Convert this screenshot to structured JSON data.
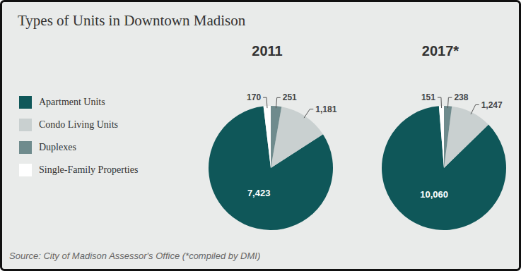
{
  "title": "Types of Units in Downtown Madison",
  "source": "Source: City of Madison Assessor's Office (*compiled by DMI)",
  "chart_data": [
    {
      "type": "pie",
      "title": "2011",
      "categories": [
        "Apartment Units",
        "Condo Living Units",
        "Duplexes",
        "Single-Family Properties"
      ],
      "values": [
        7423,
        1181,
        251,
        170
      ],
      "value_labels": [
        "7,423",
        "1,181",
        "251",
        "170"
      ],
      "colors": [
        "#0f5759",
        "#c9d0d0",
        "#6f8b8d",
        "#ffffff"
      ],
      "data_labels": true,
      "legend": "left"
    },
    {
      "type": "pie",
      "title": "2017*",
      "categories": [
        "Apartment Units",
        "Condo Living Units",
        "Duplexes",
        "Single-Family Properties"
      ],
      "values": [
        10060,
        1247,
        238,
        151
      ],
      "value_labels": [
        "10,060",
        "1,247",
        "238",
        "151"
      ],
      "colors": [
        "#0f5759",
        "#c9d0d0",
        "#6f8b8d",
        "#ffffff"
      ],
      "data_labels": true
    }
  ]
}
